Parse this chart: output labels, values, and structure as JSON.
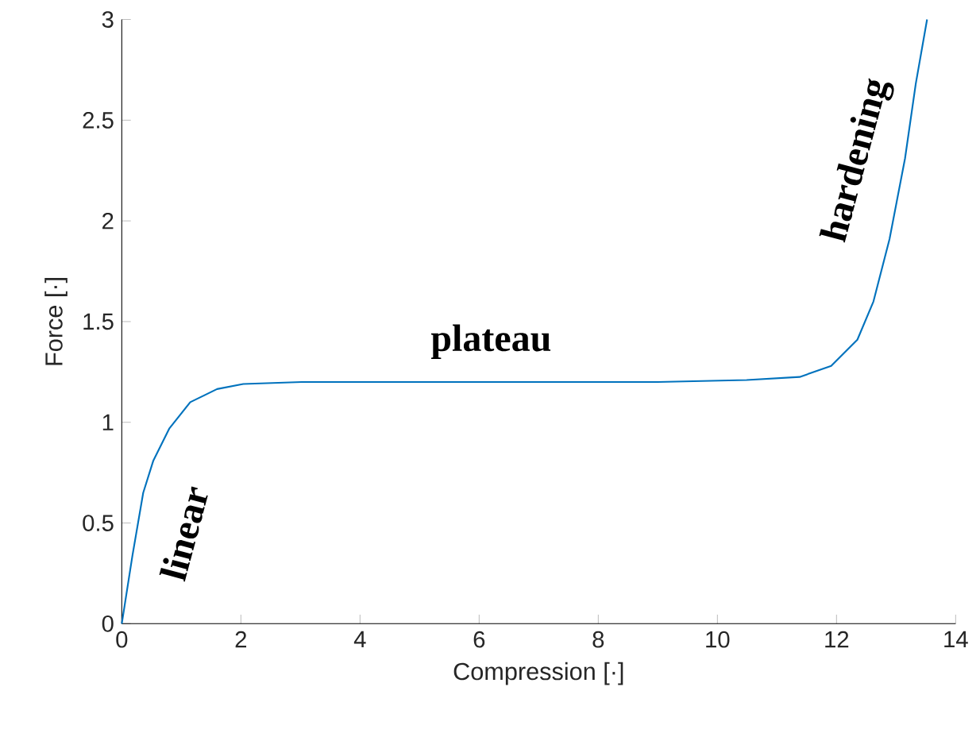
{
  "chart_data": {
    "type": "line",
    "xlabel": "Compression [·]",
    "ylabel": "Force [·]",
    "x": [
      0,
      0.18,
      0.36,
      0.53,
      0.8,
      1.15,
      1.6,
      2.04,
      3.02,
      5,
      7,
      9,
      10.49,
      11.38,
      11.91,
      12.35,
      12.62,
      12.89,
      13.15,
      13.33,
      13.52
    ],
    "series": [
      {
        "color": "#0072bd",
        "values": [
          0,
          0.34,
          0.65,
          0.81,
          0.97,
          1.1,
          1.165,
          1.19,
          1.2,
          1.2,
          1.2,
          1.2,
          1.21,
          1.225,
          1.28,
          1.41,
          1.6,
          1.91,
          2.31,
          2.68,
          3.0
        ]
      }
    ],
    "xlim": [
      0,
      14
    ],
    "ylim": [
      0,
      3
    ],
    "xticks": [
      0,
      2,
      4,
      6,
      8,
      10,
      12,
      14
    ],
    "yticks": [
      0,
      0.5,
      1,
      1.5,
      2,
      2.5,
      3
    ],
    "annotations": [
      "linear",
      "plateau",
      "hardening"
    ],
    "grid": false,
    "marker": "none",
    "line_style": "solid"
  }
}
